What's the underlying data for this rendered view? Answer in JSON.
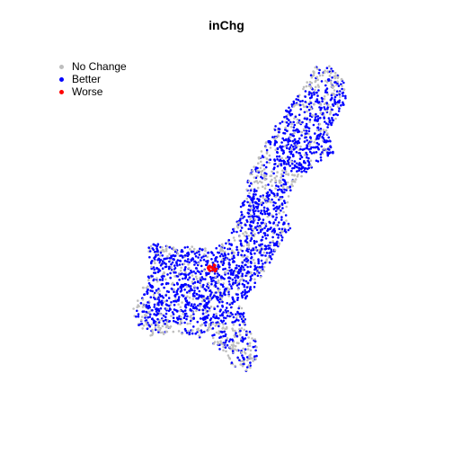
{
  "title": "inChg",
  "legend": {
    "items": [
      {
        "label": "No Change",
        "color": "#bebebe"
      },
      {
        "label": "Better",
        "color": "#0000ff"
      },
      {
        "label": "Worse",
        "color": "#ff0000"
      }
    ]
  },
  "colors": {
    "no_change": "#bebebe",
    "better": "#0000ff",
    "worse": "#ff0000"
  }
}
